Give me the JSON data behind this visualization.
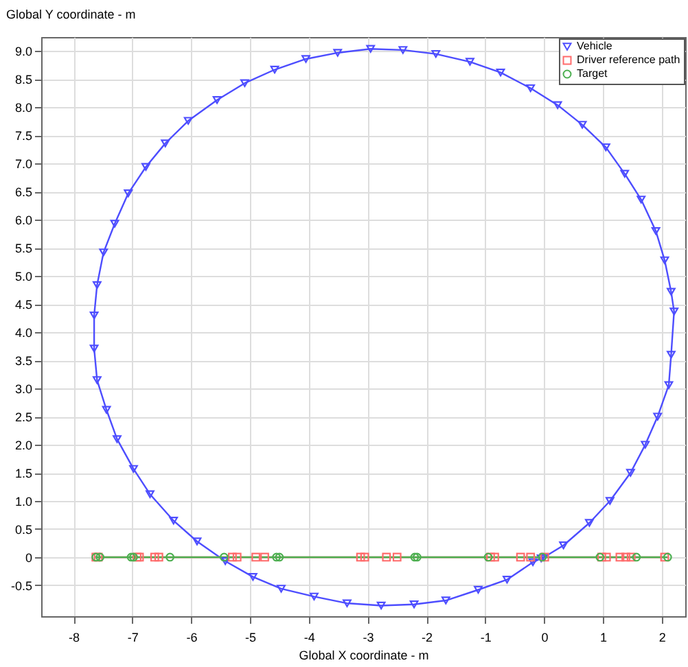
{
  "chart_data": {
    "type": "line",
    "xlabel": "Global X coordinate - m",
    "ylabel": "Global Y coordinate - m",
    "xlim": [
      -8.55,
      2.4
    ],
    "ylim": [
      -1.05,
      9.25
    ],
    "xticks": [
      -8,
      -7,
      -6,
      -5,
      -4,
      -3,
      -2,
      -1,
      0,
      1,
      2
    ],
    "yticks": [
      {
        "value": -0.5,
        "label": "-0.5"
      },
      0,
      {
        "value": 0.5,
        "label": "0.5"
      },
      {
        "value": 1,
        "label": "1.0"
      },
      {
        "value": 1.5,
        "label": "1.5"
      },
      {
        "value": 2,
        "label": "2.0"
      },
      {
        "value": 2.5,
        "label": "2.5"
      },
      {
        "value": 3,
        "label": "3.0"
      },
      {
        "value": 3.5,
        "label": "3.5"
      },
      {
        "value": 4,
        "label": "4.0"
      },
      {
        "value": 4.5,
        "label": "4.5"
      },
      {
        "value": 5,
        "label": "5.0"
      },
      {
        "value": 5.5,
        "label": "5.5"
      },
      {
        "value": 6,
        "label": "6.0"
      },
      {
        "value": 6.5,
        "label": "6.5"
      },
      {
        "value": 7,
        "label": "7.0"
      },
      {
        "value": 7.5,
        "label": "7.5"
      },
      {
        "value": 8,
        "label": "8.0"
      },
      {
        "value": 8.5,
        "label": "8.5"
      },
      {
        "value": 9,
        "label": "9.0"
      }
    ],
    "grid": true,
    "legend": "top right",
    "series": [
      {
        "name": "Vehicle",
        "color": "#4d4dff",
        "marker": "triangle",
        "x": [
          0,
          0.33,
          0.77,
          1.12,
          1.47,
          1.72,
          1.93,
          2.12,
          2.16,
          2.21,
          2.16,
          2.05,
          1.9,
          1.65,
          1.37,
          1.05,
          0.65,
          0.23,
          -0.23,
          -0.74,
          -1.26,
          -1.84,
          -2.4,
          -2.95,
          -3.51,
          -4.05,
          -4.58,
          -5.09,
          -5.56,
          -6.05,
          -6.44,
          -6.77,
          -7.07,
          -7.3,
          -7.49,
          -7.6,
          -7.65,
          -7.65,
          -7.6,
          -7.44,
          -7.26,
          -6.98,
          -6.7,
          -6.3,
          -5.9,
          -5.42,
          -4.95,
          -4.47,
          -3.91,
          -3.35,
          -2.77,
          -2.21,
          -1.67,
          -1.12,
          -0.63,
          -0.19,
          -0.05
        ],
        "values": [
          0,
          0.21,
          0.61,
          1.0,
          1.5,
          2.0,
          2.5,
          3.06,
          3.6,
          4.37,
          4.72,
          5.28,
          5.8,
          6.36,
          6.82,
          7.29,
          7.69,
          8.04,
          8.34,
          8.62,
          8.81,
          8.95,
          9.02,
          9.04,
          8.97,
          8.86,
          8.67,
          8.43,
          8.13,
          7.76,
          7.36,
          6.94,
          6.47,
          5.93,
          5.42,
          4.84,
          4.3,
          3.71,
          3.15,
          2.62,
          2.1,
          1.57,
          1.12,
          0.65,
          0.28,
          -0.07,
          -0.35,
          -0.56,
          -0.7,
          -0.82,
          -0.86,
          -0.84,
          -0.77,
          -0.58,
          -0.4,
          -0.09,
          -0.02
        ]
      },
      {
        "name": "Driver reference path",
        "color": "#ff6b6b",
        "marker": "square",
        "x": [
          -7.62,
          -7.58,
          -6.92,
          -6.88,
          -6.62,
          -6.55,
          -5.3,
          -5.22,
          -4.9,
          -4.75,
          -3.12,
          -3.05,
          -2.68,
          -2.5,
          -0.91,
          -0.84,
          -0.4,
          -0.23,
          0.01,
          0.98,
          1.06,
          1.29,
          1.39,
          1.48,
          2.05
        ],
        "values": [
          0,
          0,
          0,
          0,
          0,
          0,
          0,
          0,
          0,
          0,
          0,
          0,
          0,
          0,
          0,
          0,
          0,
          0,
          0,
          0,
          0,
          0,
          0,
          0,
          0
        ]
      },
      {
        "name": "Target",
        "color": "#4caf50",
        "marker": "circle",
        "x": [
          -7.62,
          -7.55,
          -7.02,
          -6.98,
          -6.36,
          -5.44,
          -4.55,
          -4.5,
          -2.2,
          -2.16,
          -0.95,
          -0.03,
          0.95,
          1.57,
          2.1
        ],
        "values": [
          0,
          0,
          0,
          0,
          0,
          0,
          0,
          0,
          0,
          0,
          0,
          0,
          0,
          0,
          0
        ]
      }
    ]
  }
}
